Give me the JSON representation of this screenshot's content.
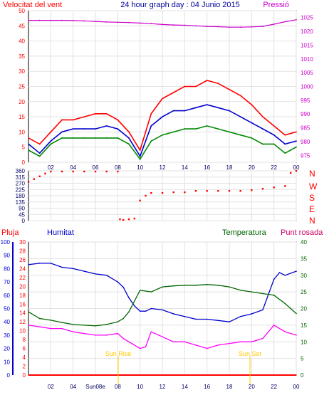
{
  "header": {
    "wind_label": "Velocitat del vent",
    "title": "24 hour graph day : 04 Junio 2015",
    "pressure_label": "Pressió"
  },
  "mid_header": {
    "rain_label": "Pluja",
    "humidity_label": "Humitat",
    "temperature_label": "Temperatura",
    "dewpoint_label": "Punt rosada"
  },
  "sun": {
    "rise_label": "Sun Rise",
    "set_label": "Sun Set",
    "rise_tick": "Sun08e"
  },
  "colors": {
    "wind_gust": "#ff0000",
    "wind_avg": "#008800",
    "wind_mean": "#0000cc",
    "pressure": "#cc00cc",
    "direction": "#ff0000",
    "temperature": "#006600",
    "humidity": "#0000cc",
    "dewpoint": "#ff00ff",
    "rain": "#ff0000",
    "sun": "#ffcc00"
  },
  "chart_data": [
    {
      "type": "line",
      "x_ticks": [
        "02",
        "04",
        "06",
        "08",
        "10",
        "12",
        "14",
        "16",
        "18",
        "20",
        "22",
        "00"
      ],
      "left_axis": {
        "title": "Velocitat del vent",
        "ticks": [
          0,
          5,
          10,
          15,
          20,
          25,
          30,
          35,
          40,
          45,
          50
        ],
        "ylim": [
          0,
          50
        ]
      },
      "right_axis": {
        "title": "Pressió",
        "ticks": [
          975,
          980,
          985,
          990,
          995,
          1000,
          1005,
          1010,
          1015,
          1020,
          1025
        ],
        "ylim": [
          972.5,
          1027.5
        ]
      },
      "series": [
        {
          "key": "gust",
          "hours": [
            0,
            1,
            2,
            3,
            4,
            5,
            6,
            7,
            8,
            9,
            10,
            11,
            12,
            13,
            14,
            15,
            16,
            17,
            18,
            19,
            20,
            21,
            22,
            23,
            24
          ],
          "values": [
            8,
            6,
            10,
            14,
            14,
            15,
            16,
            16,
            14,
            10,
            4,
            16,
            21,
            23,
            25,
            25,
            27,
            26,
            24,
            22,
            19,
            15,
            12,
            9,
            10
          ]
        },
        {
          "key": "mean",
          "hours": [
            0,
            1,
            2,
            3,
            4,
            5,
            6,
            7,
            8,
            9,
            10,
            11,
            12,
            13,
            14,
            15,
            16,
            17,
            18,
            19,
            20,
            21,
            22,
            23,
            24
          ],
          "values": [
            6,
            3,
            7,
            10,
            11,
            11,
            11,
            12,
            11,
            8,
            2,
            12,
            15,
            17,
            17,
            18,
            19,
            18,
            17,
            15,
            13,
            11,
            9,
            6,
            7
          ]
        },
        {
          "key": "avg",
          "hours": [
            0,
            1,
            2,
            3,
            4,
            5,
            6,
            7,
            8,
            9,
            10,
            11,
            12,
            13,
            14,
            15,
            16,
            17,
            18,
            19,
            20,
            21,
            22,
            23,
            24
          ],
          "values": [
            4,
            2,
            6,
            8,
            8,
            8,
            8,
            8,
            8,
            6,
            1,
            7,
            9,
            10,
            11,
            11,
            12,
            11,
            10,
            9,
            8,
            6,
            6,
            3,
            5
          ]
        },
        {
          "key": "pressure",
          "hours": [
            0,
            1,
            2,
            3,
            4,
            5,
            6,
            7,
            8,
            9,
            10,
            11,
            12,
            13,
            14,
            15,
            16,
            17,
            18,
            19,
            20,
            21,
            22,
            23,
            24
          ],
          "values": [
            1024,
            1024,
            1024,
            1024,
            1023.9,
            1023.8,
            1023.6,
            1023.4,
            1023.3,
            1023.2,
            1023,
            1022.8,
            1022.5,
            1022.3,
            1022.2,
            1022,
            1021.8,
            1021.7,
            1021.5,
            1021.5,
            1021.6,
            1021.8,
            1022.6,
            1023.5,
            1024.2
          ]
        }
      ]
    },
    {
      "type": "scatter",
      "right_axis_ticks": [
        "N",
        "W",
        "S",
        "E",
        "N"
      ],
      "left_axis": {
        "ticks": [
          0,
          45,
          90,
          135,
          180,
          225,
          270,
          315,
          360
        ],
        "ylim": [
          0,
          360
        ]
      },
      "series": [
        {
          "key": "direction",
          "hours": [
            0,
            0.5,
            1,
            1.5,
            2,
            3,
            4,
            5,
            6,
            7,
            8,
            8.2,
            8.5,
            9,
            9.5,
            10,
            10.5,
            11,
            12,
            13,
            14,
            15,
            16,
            17,
            18,
            19,
            20,
            21,
            22,
            23,
            23.5,
            24
          ],
          "values": [
            280,
            300,
            320,
            340,
            355,
            355,
            355,
            355,
            355,
            355,
            355,
            10,
            5,
            10,
            15,
            145,
            180,
            200,
            200,
            205,
            205,
            215,
            215,
            215,
            215,
            215,
            220,
            230,
            240,
            250,
            345,
            360
          ]
        }
      ]
    },
    {
      "type": "line",
      "x_ticks": [
        "02",
        "04",
        "Sun08e",
        "08",
        "10",
        "12",
        "14",
        "16",
        "18",
        "20",
        "22",
        "00"
      ],
      "rain_axis": {
        "ticks": [
          0,
          10,
          20,
          30,
          40,
          50,
          60,
          70,
          80,
          90,
          100
        ]
      },
      "temp_axis": {
        "ticks": [
          0,
          2,
          4,
          6,
          8,
          10,
          12,
          14,
          16,
          18,
          20,
          22,
          24,
          26,
          28,
          30
        ]
      },
      "right_axis": {
        "ticks": [
          0,
          5,
          10,
          15,
          20,
          25,
          30,
          35,
          40
        ]
      },
      "series": [
        {
          "key": "humidity",
          "hours": [
            0,
            1,
            2,
            3,
            4,
            5,
            6,
            7,
            8,
            8.5,
            9,
            9.5,
            10,
            10.5,
            11,
            12,
            13,
            14,
            15,
            16,
            17,
            18,
            19,
            20,
            21,
            22,
            22.5,
            23,
            24
          ],
          "values": [
            83,
            84,
            84,
            81,
            80,
            78,
            76,
            75,
            70,
            66,
            58,
            52,
            48,
            48,
            50,
            49,
            46,
            44,
            42,
            42,
            41,
            40,
            44,
            46,
            49,
            72,
            77,
            75,
            78
          ]
        },
        {
          "key": "temperature",
          "hours": [
            0,
            1,
            2,
            3,
            4,
            5,
            6,
            7,
            8,
            8.5,
            9,
            10,
            11,
            12,
            13,
            14,
            15,
            16,
            17,
            18,
            19,
            20,
            21,
            22,
            23,
            24
          ],
          "values": [
            19,
            17,
            16.5,
            15.8,
            15.2,
            15,
            14.8,
            15.2,
            16,
            17,
            19,
            25.5,
            25,
            26.5,
            26.8,
            27,
            27,
            27.2,
            27,
            26.5,
            25.5,
            25,
            24.5,
            24,
            21.5,
            18.5
          ]
        },
        {
          "key": "dewpoint",
          "hours": [
            0,
            1,
            2,
            3,
            4,
            5,
            6,
            7,
            8,
            8.5,
            9,
            10,
            10.5,
            11,
            12,
            13,
            14,
            15,
            16,
            17,
            18,
            19,
            20,
            21,
            22,
            23,
            24
          ],
          "values": [
            15,
            14.5,
            14,
            14,
            13,
            12.5,
            12,
            12,
            12.5,
            11,
            10,
            8,
            8.5,
            13,
            11.5,
            10,
            10,
            9,
            8,
            9,
            9.5,
            10,
            10,
            11,
            15,
            13,
            12
          ]
        },
        {
          "key": "rain",
          "hours": [
            0,
            24
          ],
          "values": [
            0,
            0
          ]
        }
      ]
    }
  ]
}
